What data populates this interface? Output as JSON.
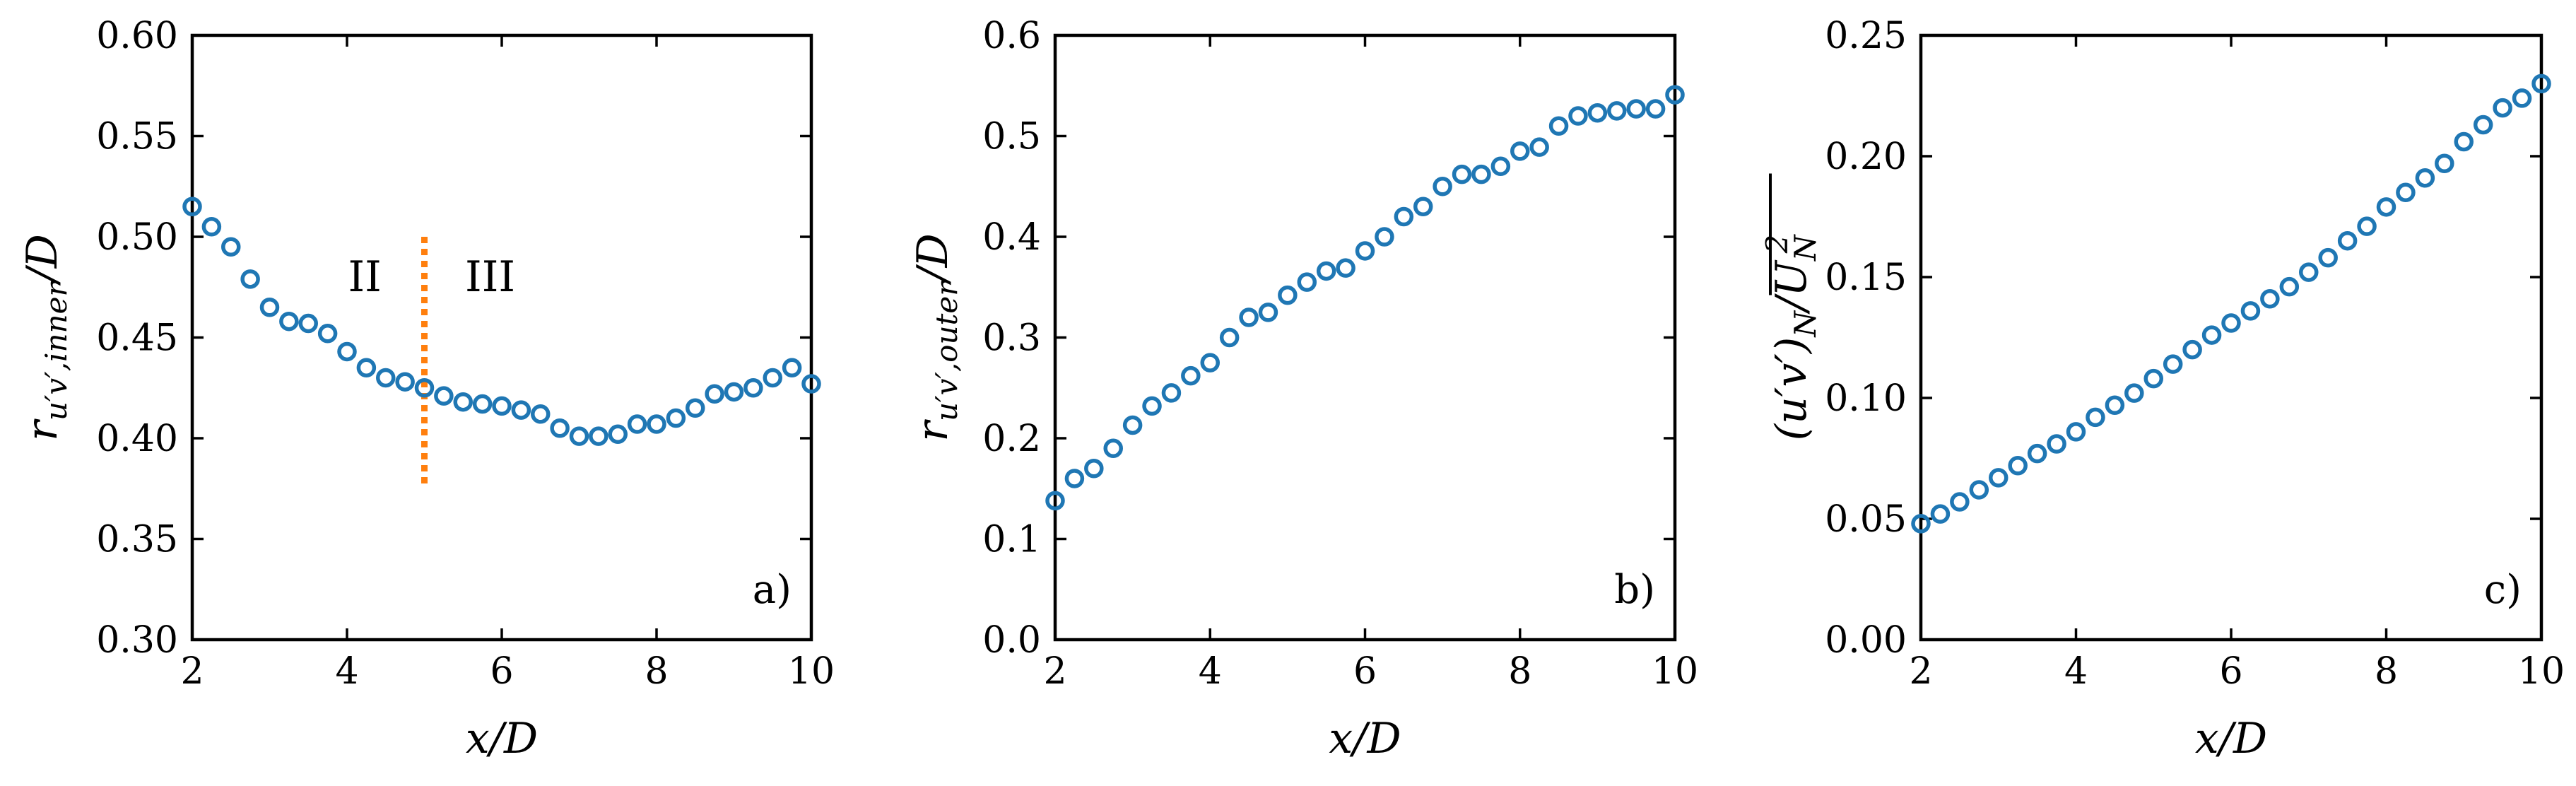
{
  "colors": {
    "marker": "#1f77b4",
    "divider": "#ff7f0e",
    "axis": "#000000"
  },
  "chart_data": [
    {
      "type": "scatter",
      "panel_label": "a)",
      "xlabel": "x/D",
      "ylabel": "r_{u'v',inner}/D",
      "ylabel_display": "r",
      "ylabel_sub": "u′v′,inner",
      "ylabel_tail": "/D",
      "xlim": [
        2,
        10
      ],
      "ylim": [
        0.3,
        0.6
      ],
      "xticks": [
        2,
        4,
        6,
        8,
        10
      ],
      "xtick_labels": [
        "2",
        "4",
        "6",
        "8",
        "10"
      ],
      "yticks": [
        0.3,
        0.35,
        0.4,
        0.45,
        0.5,
        0.55,
        0.6
      ],
      "ytick_labels": [
        "0.30",
        "0.35",
        "0.40",
        "0.45",
        "0.50",
        "0.55",
        "0.60"
      ],
      "grid": false,
      "x": [
        2.0,
        2.25,
        2.5,
        2.75,
        3.0,
        3.25,
        3.5,
        3.75,
        4.0,
        4.25,
        4.5,
        4.75,
        5.0,
        5.25,
        5.5,
        5.75,
        6.0,
        6.25,
        6.5,
        6.75,
        7.0,
        7.25,
        7.5,
        7.75,
        8.0,
        8.25,
        8.5,
        8.75,
        9.0,
        9.25,
        9.5,
        9.75,
        10.0
      ],
      "y": [
        0.515,
        0.505,
        0.495,
        0.479,
        0.465,
        0.458,
        0.457,
        0.452,
        0.443,
        0.435,
        0.43,
        0.428,
        0.425,
        0.421,
        0.418,
        0.417,
        0.416,
        0.414,
        0.412,
        0.405,
        0.401,
        0.401,
        0.402,
        0.407,
        0.407,
        0.41,
        0.415,
        0.422,
        0.423,
        0.425,
        0.43,
        0.435,
        0.427
      ],
      "divider": {
        "x": 5.0,
        "y_range": [
          0.375,
          0.5
        ]
      },
      "region_labels": [
        {
          "text": "II",
          "x": 4.23,
          "y": 0.48
        },
        {
          "text": "III",
          "x": 5.85,
          "y": 0.48
        }
      ]
    },
    {
      "type": "scatter",
      "panel_label": "b)",
      "xlabel": "x/D",
      "ylabel": "r_{u'v',outer}/D",
      "ylabel_display": "r",
      "ylabel_sub": "u′v′,outer",
      "ylabel_tail": "/D",
      "xlim": [
        2,
        10
      ],
      "ylim": [
        0.0,
        0.6
      ],
      "xticks": [
        2,
        4,
        6,
        8,
        10
      ],
      "xtick_labels": [
        "2",
        "4",
        "6",
        "8",
        "10"
      ],
      "yticks": [
        0.0,
        0.1,
        0.2,
        0.3,
        0.4,
        0.5,
        0.6
      ],
      "ytick_labels": [
        "0.0",
        "0.1",
        "0.2",
        "0.3",
        "0.4",
        "0.5",
        "0.6"
      ],
      "grid": false,
      "x": [
        2.0,
        2.25,
        2.5,
        2.75,
        3.0,
        3.25,
        3.5,
        3.75,
        4.0,
        4.25,
        4.5,
        4.75,
        5.0,
        5.25,
        5.5,
        5.75,
        6.0,
        6.25,
        6.5,
        6.75,
        7.0,
        7.25,
        7.5,
        7.75,
        8.0,
        8.25,
        8.5,
        8.75,
        9.0,
        9.25,
        9.5,
        9.75,
        10.0
      ],
      "y": [
        0.138,
        0.16,
        0.17,
        0.19,
        0.213,
        0.232,
        0.245,
        0.262,
        0.275,
        0.3,
        0.32,
        0.325,
        0.342,
        0.355,
        0.366,
        0.369,
        0.386,
        0.4,
        0.42,
        0.43,
        0.45,
        0.462,
        0.462,
        0.47,
        0.485,
        0.489,
        0.51,
        0.52,
        0.523,
        0.525,
        0.527,
        0.527,
        0.541
      ]
    },
    {
      "type": "scatter",
      "panel_label": "c)",
      "xlabel": "x/D",
      "ylabel": "(\\overline{u'v'})_N/U_N^2",
      "ylabel_display": "(u′v′)",
      "ylabel_sub": "N",
      "ylabel_tail": "/U",
      "ylabel_tail_sub": "N",
      "ylabel_tail_sup": "2",
      "xlim": [
        2,
        10
      ],
      "ylim": [
        0.0,
        0.25
      ],
      "xticks": [
        2,
        4,
        6,
        8,
        10
      ],
      "xtick_labels": [
        "2",
        "4",
        "6",
        "8",
        "10"
      ],
      "yticks": [
        0.0,
        0.05,
        0.1,
        0.15,
        0.2,
        0.25
      ],
      "ytick_labels": [
        "0.00",
        "0.05",
        "0.10",
        "0.15",
        "0.20",
        "0.25"
      ],
      "grid": false,
      "x": [
        2.0,
        2.25,
        2.5,
        2.75,
        3.0,
        3.25,
        3.5,
        3.75,
        4.0,
        4.25,
        4.5,
        4.75,
        5.0,
        5.25,
        5.5,
        5.75,
        6.0,
        6.25,
        6.5,
        6.75,
        7.0,
        7.25,
        7.5,
        7.75,
        8.0,
        8.25,
        8.5,
        8.75,
        9.0,
        9.25,
        9.5,
        9.75,
        10.0
      ],
      "y": [
        0.048,
        0.052,
        0.057,
        0.062,
        0.067,
        0.072,
        0.077,
        0.081,
        0.086,
        0.092,
        0.097,
        0.102,
        0.108,
        0.114,
        0.12,
        0.126,
        0.131,
        0.136,
        0.141,
        0.146,
        0.152,
        0.158,
        0.165,
        0.171,
        0.179,
        0.185,
        0.191,
        0.197,
        0.206,
        0.213,
        0.22,
        0.224,
        0.23
      ]
    }
  ]
}
